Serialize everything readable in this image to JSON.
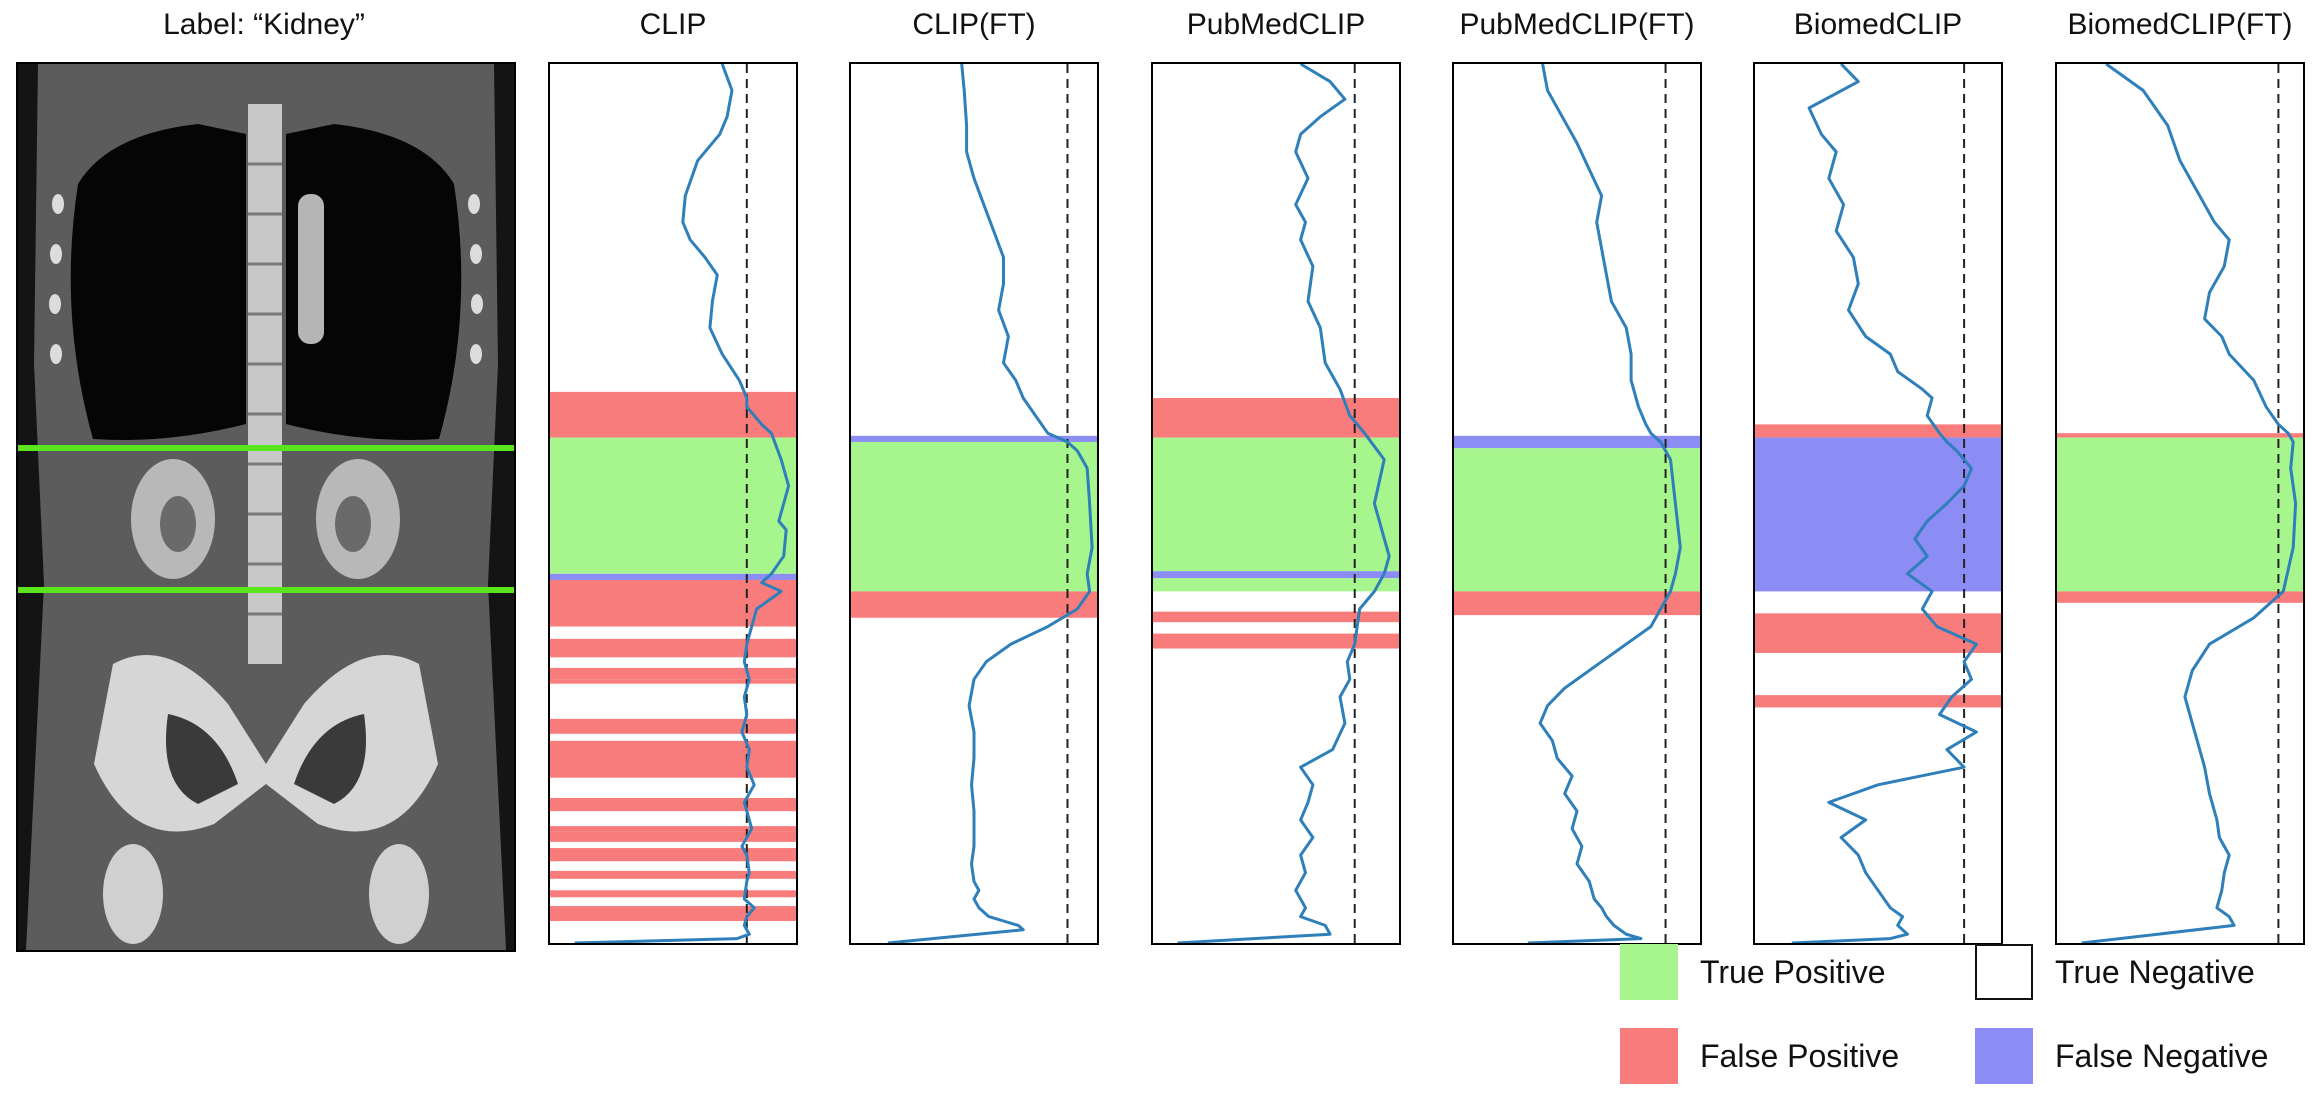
{
  "figure": {
    "ct_title": "Label:  “Kidney”"
  },
  "colors": {
    "true_positive": "#a7f58d",
    "false_positive": "#f87c7c",
    "true_negative": "#ffffff",
    "false_negative": "#8c8cf5",
    "curve": "#2f7fba",
    "label_lines": "#5be51d"
  },
  "legend": [
    {
      "key": "true_positive",
      "label": "True Positive"
    },
    {
      "key": "true_negative",
      "label": "True Negative"
    },
    {
      "key": "false_positive",
      "label": "False Positive"
    },
    {
      "key": "false_negative",
      "label": "False Negative"
    }
  ],
  "chart_data": [
    {
      "type": "line",
      "title": "CLIP",
      "threshold": 0.8,
      "x": [
        0.7,
        0.74,
        0.72,
        0.69,
        0.6,
        0.55,
        0.54,
        0.57,
        0.63,
        0.68,
        0.66,
        0.65,
        0.7,
        0.77,
        0.8,
        0.8,
        0.86,
        0.9,
        0.94,
        0.97,
        0.95,
        0.93,
        0.96,
        0.95,
        0.9,
        0.86,
        0.94,
        0.84,
        0.82,
        0.8,
        0.79,
        0.81,
        0.79,
        0.8,
        0.78,
        0.81,
        0.8,
        0.83,
        0.79,
        0.8,
        0.82,
        0.78,
        0.8,
        0.81,
        0.8,
        0.79,
        0.83,
        0.8,
        0.79,
        0.81,
        0.76,
        0.1
      ],
      "y": [
        0,
        0.03,
        0.06,
        0.08,
        0.11,
        0.15,
        0.18,
        0.2,
        0.22,
        0.24,
        0.27,
        0.3,
        0.33,
        0.36,
        0.38,
        0.39,
        0.41,
        0.42,
        0.45,
        0.48,
        0.5,
        0.52,
        0.53,
        0.56,
        0.58,
        0.59,
        0.6,
        0.62,
        0.64,
        0.66,
        0.68,
        0.7,
        0.72,
        0.74,
        0.76,
        0.78,
        0.8,
        0.82,
        0.84,
        0.85,
        0.87,
        0.89,
        0.9,
        0.92,
        0.93,
        0.95,
        0.96,
        0.97,
        0.98,
        0.99,
        0.995,
        1
      ],
      "bands": [
        {
          "y0": 0.373,
          "y1": 0.425,
          "cls": "false_positive"
        },
        {
          "y0": 0.425,
          "y1": 0.58,
          "cls": "true_positive"
        },
        {
          "y0": 0.58,
          "y1": 0.587,
          "cls": "false_negative"
        },
        {
          "y0": 0.587,
          "y1": 0.64,
          "cls": "false_positive"
        },
        {
          "y0": 0.654,
          "y1": 0.675,
          "cls": "false_positive"
        },
        {
          "y0": 0.687,
          "y1": 0.7,
          "cls": "false_positive"
        },
        {
          "y0": 0.7,
          "y1": 0.705,
          "cls": "false_positive"
        },
        {
          "y0": 0.745,
          "y1": 0.762,
          "cls": "false_positive"
        },
        {
          "y0": 0.77,
          "y1": 0.812,
          "cls": "false_positive"
        },
        {
          "y0": 0.835,
          "y1": 0.85,
          "cls": "false_positive"
        },
        {
          "y0": 0.867,
          "y1": 0.873,
          "cls": "false_positive"
        },
        {
          "y0": 0.873,
          "y1": 0.885,
          "cls": "false_positive"
        },
        {
          "y0": 0.892,
          "y1": 0.907,
          "cls": "false_positive"
        },
        {
          "y0": 0.918,
          "y1": 0.927,
          "cls": "false_positive"
        },
        {
          "y0": 0.94,
          "y1": 0.948,
          "cls": "false_positive"
        },
        {
          "y0": 0.958,
          "y1": 0.975,
          "cls": "false_positive"
        }
      ]
    },
    {
      "type": "line",
      "title": "CLIP(FT)",
      "threshold": 0.88,
      "x": [
        0.45,
        0.46,
        0.47,
        0.47,
        0.5,
        0.54,
        0.58,
        0.62,
        0.62,
        0.6,
        0.64,
        0.62,
        0.67,
        0.7,
        0.75,
        0.8,
        0.88,
        0.92,
        0.96,
        0.97,
        0.98,
        0.96,
        0.97,
        0.92,
        0.8,
        0.65,
        0.55,
        0.5,
        0.48,
        0.5,
        0.5,
        0.49,
        0.5,
        0.5,
        0.5,
        0.49,
        0.5,
        0.52,
        0.5,
        0.52,
        0.56,
        0.62,
        0.68,
        0.7,
        0.15
      ],
      "y": [
        0,
        0.03,
        0.07,
        0.1,
        0.13,
        0.16,
        0.19,
        0.22,
        0.25,
        0.28,
        0.31,
        0.34,
        0.36,
        0.38,
        0.4,
        0.42,
        0.43,
        0.44,
        0.46,
        0.5,
        0.55,
        0.58,
        0.6,
        0.62,
        0.64,
        0.66,
        0.68,
        0.7,
        0.73,
        0.76,
        0.79,
        0.82,
        0.85,
        0.87,
        0.89,
        0.91,
        0.93,
        0.94,
        0.95,
        0.96,
        0.97,
        0.975,
        0.98,
        0.985,
        1
      ],
      "bands": [
        {
          "y0": 0.423,
          "y1": 0.43,
          "cls": "false_negative"
        },
        {
          "y0": 0.43,
          "y1": 0.6,
          "cls": "true_positive"
        },
        {
          "y0": 0.6,
          "y1": 0.63,
          "cls": "false_positive"
        }
      ]
    },
    {
      "type": "line",
      "title": "PubMedCLIP",
      "threshold": 0.82,
      "x": [
        0.6,
        0.72,
        0.78,
        0.68,
        0.6,
        0.58,
        0.63,
        0.58,
        0.62,
        0.6,
        0.65,
        0.63,
        0.68,
        0.7,
        0.76,
        0.8,
        0.86,
        0.94,
        0.9,
        0.93,
        0.96,
        0.94,
        0.9,
        0.84,
        0.83,
        0.82,
        0.79,
        0.8,
        0.76,
        0.78,
        0.73,
        0.6,
        0.65,
        0.63,
        0.6,
        0.65,
        0.6,
        0.62,
        0.58,
        0.62,
        0.6,
        0.7,
        0.72,
        0.1
      ],
      "y": [
        0,
        0.02,
        0.04,
        0.06,
        0.08,
        0.1,
        0.13,
        0.16,
        0.18,
        0.2,
        0.23,
        0.27,
        0.3,
        0.34,
        0.37,
        0.4,
        0.42,
        0.45,
        0.5,
        0.53,
        0.56,
        0.58,
        0.6,
        0.62,
        0.64,
        0.66,
        0.68,
        0.7,
        0.72,
        0.75,
        0.78,
        0.8,
        0.82,
        0.84,
        0.86,
        0.88,
        0.9,
        0.92,
        0.94,
        0.96,
        0.97,
        0.98,
        0.99,
        1
      ],
      "bands": [
        {
          "y0": 0.38,
          "y1": 0.425,
          "cls": "false_positive"
        },
        {
          "y0": 0.425,
          "y1": 0.577,
          "cls": "true_positive"
        },
        {
          "y0": 0.577,
          "y1": 0.585,
          "cls": "false_negative"
        },
        {
          "y0": 0.585,
          "y1": 0.6,
          "cls": "true_positive"
        },
        {
          "y0": 0.623,
          "y1": 0.635,
          "cls": "false_positive"
        },
        {
          "y0": 0.648,
          "y1": 0.665,
          "cls": "false_positive"
        }
      ]
    },
    {
      "type": "line",
      "title": "PubMedCLIP(FT)",
      "threshold": 0.86,
      "x": [
        0.36,
        0.38,
        0.44,
        0.5,
        0.55,
        0.6,
        0.58,
        0.6,
        0.62,
        0.64,
        0.7,
        0.72,
        0.72,
        0.75,
        0.78,
        0.8,
        0.84,
        0.88,
        0.9,
        0.92,
        0.9,
        0.88,
        0.8,
        0.6,
        0.45,
        0.38,
        0.35,
        0.4,
        0.42,
        0.48,
        0.45,
        0.5,
        0.48,
        0.52,
        0.5,
        0.55,
        0.57,
        0.6,
        0.62,
        0.65,
        0.7,
        0.76,
        0.3
      ],
      "y": [
        0,
        0.03,
        0.06,
        0.09,
        0.12,
        0.15,
        0.18,
        0.21,
        0.24,
        0.27,
        0.3,
        0.33,
        0.36,
        0.39,
        0.41,
        0.42,
        0.43,
        0.45,
        0.5,
        0.55,
        0.58,
        0.6,
        0.64,
        0.68,
        0.71,
        0.73,
        0.75,
        0.77,
        0.79,
        0.81,
        0.83,
        0.85,
        0.87,
        0.89,
        0.91,
        0.93,
        0.95,
        0.96,
        0.97,
        0.98,
        0.99,
        0.995,
        1
      ],
      "bands": [
        {
          "y0": 0.423,
          "y1": 0.437,
          "cls": "false_negative"
        },
        {
          "y0": 0.437,
          "y1": 0.6,
          "cls": "true_positive"
        },
        {
          "y0": 0.6,
          "y1": 0.627,
          "cls": "false_positive"
        }
      ]
    },
    {
      "type": "line",
      "title": "BiomedCLIP",
      "threshold": 0.85,
      "x": [
        0.35,
        0.42,
        0.22,
        0.27,
        0.33,
        0.3,
        0.36,
        0.33,
        0.4,
        0.42,
        0.38,
        0.45,
        0.55,
        0.58,
        0.68,
        0.72,
        0.7,
        0.75,
        0.78,
        0.82,
        0.88,
        0.85,
        0.78,
        0.7,
        0.65,
        0.7,
        0.62,
        0.72,
        0.68,
        0.74,
        0.9,
        0.85,
        0.88,
        0.8,
        0.75,
        0.9,
        0.78,
        0.85,
        0.5,
        0.3,
        0.45,
        0.35,
        0.42,
        0.45,
        0.5,
        0.55,
        0.6,
        0.58,
        0.62,
        0.55,
        0.15
      ],
      "y": [
        0,
        0.02,
        0.05,
        0.08,
        0.1,
        0.13,
        0.16,
        0.19,
        0.22,
        0.25,
        0.28,
        0.31,
        0.33,
        0.35,
        0.37,
        0.38,
        0.4,
        0.42,
        0.43,
        0.44,
        0.46,
        0.48,
        0.5,
        0.52,
        0.54,
        0.56,
        0.58,
        0.6,
        0.62,
        0.64,
        0.66,
        0.68,
        0.7,
        0.72,
        0.74,
        0.76,
        0.78,
        0.8,
        0.82,
        0.84,
        0.86,
        0.88,
        0.9,
        0.92,
        0.94,
        0.96,
        0.97,
        0.98,
        0.99,
        0.995,
        1
      ],
      "bands": [
        {
          "y0": 0.41,
          "y1": 0.425,
          "cls": "false_positive"
        },
        {
          "y0": 0.425,
          "y1": 0.6,
          "cls": "false_negative"
        },
        {
          "y0": 0.625,
          "y1": 0.67,
          "cls": "false_positive"
        },
        {
          "y0": 0.718,
          "y1": 0.732,
          "cls": "false_positive"
        }
      ]
    },
    {
      "type": "line",
      "title": "BiomedCLIP(FT)",
      "threshold": 0.9,
      "x": [
        0.2,
        0.35,
        0.45,
        0.5,
        0.58,
        0.64,
        0.7,
        0.68,
        0.62,
        0.6,
        0.67,
        0.7,
        0.8,
        0.85,
        0.9,
        0.94,
        0.96,
        0.95,
        0.97,
        0.96,
        0.92,
        0.8,
        0.62,
        0.55,
        0.52,
        0.55,
        0.58,
        0.6,
        0.62,
        0.65,
        0.66,
        0.7,
        0.68,
        0.67,
        0.65,
        0.7,
        0.72,
        0.1
      ],
      "y": [
        0,
        0.03,
        0.07,
        0.11,
        0.15,
        0.18,
        0.2,
        0.23,
        0.26,
        0.29,
        0.31,
        0.33,
        0.36,
        0.39,
        0.41,
        0.42,
        0.43,
        0.46,
        0.5,
        0.55,
        0.6,
        0.63,
        0.66,
        0.69,
        0.72,
        0.75,
        0.78,
        0.8,
        0.83,
        0.86,
        0.88,
        0.9,
        0.92,
        0.94,
        0.96,
        0.97,
        0.98,
        1
      ],
      "bands": [
        {
          "y0": 0.42,
          "y1": 0.425,
          "cls": "false_positive"
        },
        {
          "y0": 0.425,
          "y1": 0.6,
          "cls": "true_positive"
        },
        {
          "y0": 0.6,
          "y1": 0.613,
          "cls": "false_positive"
        }
      ]
    }
  ]
}
